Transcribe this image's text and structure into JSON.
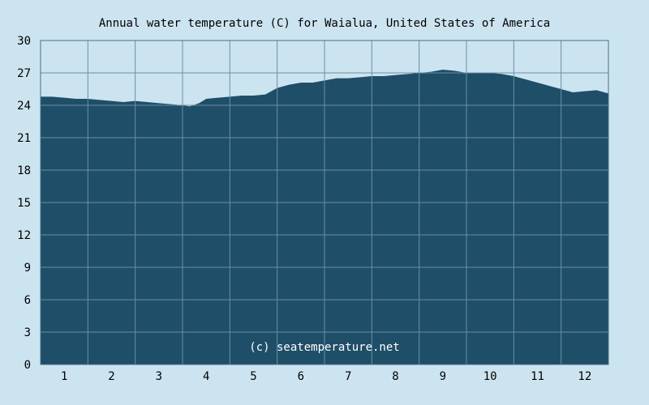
{
  "chart_data": {
    "type": "area",
    "title": "Annual water temperature (C) for Waialua, United States of America",
    "xlabel": "",
    "ylabel": "",
    "ylim": [
      0,
      30
    ],
    "yticks": [
      "0",
      "3",
      "6",
      "9",
      "12",
      "15",
      "18",
      "21",
      "24",
      "27",
      "30"
    ],
    "xlim": [
      0.5,
      12.5
    ],
    "xticks": [
      "1",
      "2",
      "3",
      "4",
      "5",
      "6",
      "7",
      "8",
      "9",
      "10",
      "11",
      "12"
    ],
    "grid": true,
    "annotation": "(c) seatemperature.net",
    "colors": {
      "area": "#1f4e68",
      "grid": "#6a8fa6",
      "background": "#cce4f0",
      "frame": "#4a6f86"
    },
    "x": [
      0.5,
      0.75,
      1.0,
      1.25,
      1.5,
      1.75,
      2.0,
      2.25,
      2.5,
      2.75,
      3.0,
      3.25,
      3.5,
      3.65,
      3.85,
      4.0,
      4.25,
      4.5,
      4.75,
      5.0,
      5.25,
      5.5,
      5.75,
      6.0,
      6.25,
      6.5,
      6.75,
      7.0,
      7.25,
      7.5,
      7.75,
      8.0,
      8.25,
      8.5,
      8.75,
      9.0,
      9.25,
      9.5,
      9.75,
      10.0,
      10.25,
      10.5,
      10.75,
      11.0,
      11.25,
      11.5,
      11.75,
      12.0,
      12.25,
      12.5
    ],
    "series": [
      {
        "values": [
          24.8,
          24.8,
          24.7,
          24.6,
          24.6,
          24.5,
          24.4,
          24.3,
          24.4,
          24.3,
          24.2,
          24.1,
          24.0,
          23.9,
          24.2,
          24.6,
          24.7,
          24.8,
          24.9,
          24.9,
          25.0,
          25.6,
          25.9,
          26.1,
          26.1,
          26.3,
          26.5,
          26.5,
          26.6,
          26.7,
          26.7,
          26.8,
          26.9,
          27.0,
          27.1,
          27.3,
          27.2,
          27.0,
          27.0,
          27.0,
          26.9,
          26.7,
          26.4,
          26.1,
          25.8,
          25.5,
          25.2,
          25.3,
          25.4,
          25.1
        ]
      }
    ]
  }
}
